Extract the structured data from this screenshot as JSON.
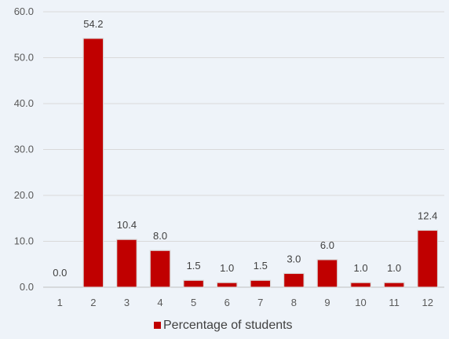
{
  "chart_data": {
    "type": "bar",
    "categories": [
      "1",
      "2",
      "3",
      "4",
      "5",
      "6",
      "7",
      "8",
      "9",
      "10",
      "11",
      "12"
    ],
    "series": [
      {
        "name": "Percentage of students",
        "values": [
          0.0,
          54.2,
          10.4,
          8.0,
          1.5,
          1.0,
          1.5,
          3.0,
          6.0,
          1.0,
          1.0,
          12.4
        ],
        "color": "#c00000"
      }
    ],
    "data_labels": [
      "0.0",
      "54.2",
      "10.4",
      "8.0",
      "1.5",
      "1.0",
      "1.5",
      "3.0",
      "6.0",
      "1.0",
      "1.0",
      "12.4"
    ],
    "y_ticks": [
      "0.0",
      "10.0",
      "20.0",
      "30.0",
      "40.0",
      "50.0",
      "60.0"
    ],
    "ylim": [
      0,
      60
    ],
    "grid": true,
    "legend": "bottom-center",
    "title": "",
    "xlabel": "",
    "ylabel": ""
  }
}
